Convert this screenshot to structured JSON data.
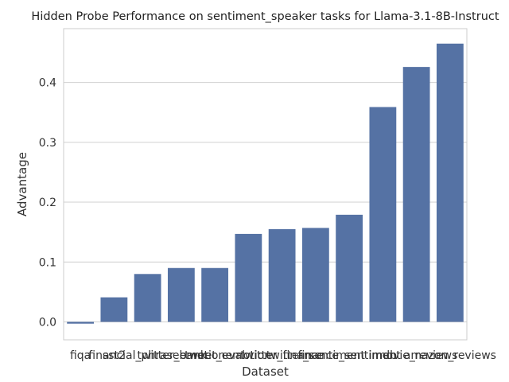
{
  "chart_data": {
    "type": "bar",
    "title": "Hidden Probe Performance on sentiment_speaker tasks for Llama-3.1-8B-Instruct",
    "xlabel": "Dataset",
    "ylabel": "Advantage",
    "categories": [
      "fiqa",
      "sst2",
      "financial_phrasebank",
      "twitter_emotion",
      "tweet_eval",
      "emotion",
      "twitter_finance",
      "twitter_sentiment",
      "finance_sentiment",
      "imdb",
      "movie_reviews",
      "amazon_reviews"
    ],
    "values": [
      -0.003,
      0.041,
      0.08,
      0.09,
      0.09,
      0.147,
      0.155,
      0.157,
      0.179,
      0.359,
      0.426,
      0.465
    ],
    "ylim": [
      -0.03,
      0.49
    ],
    "yticks": [
      0.0,
      0.1,
      0.2,
      0.3,
      0.4
    ],
    "ytick_labels": [
      "0.0",
      "0.1",
      "0.2",
      "0.3",
      "0.4"
    ],
    "grid": "horizontal",
    "bar_color": "#5572a4",
    "grid_color": "#d0d0d0"
  }
}
